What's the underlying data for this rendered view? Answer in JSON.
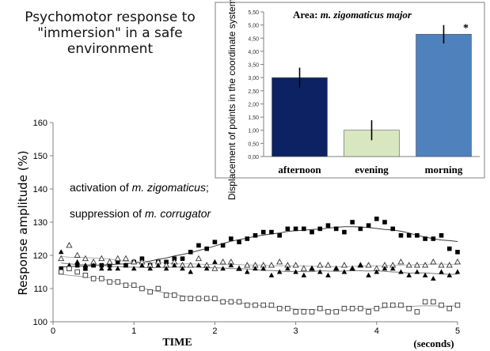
{
  "heading": [
    "Psychomotor response to",
    "\"immersion\" in a safe",
    "environment"
  ],
  "chart_data": [
    {
      "type": "bar",
      "title_prefix": "Area:",
      "title_italic": "m. zigomaticus major",
      "ylabel": "Displacement of points in the coordinate system (mm)",
      "ylim": [
        0,
        5.5
      ],
      "yticks": [
        "0,00",
        "0,50",
        "1,00",
        "1,50",
        "2,00",
        "2,50",
        "3,00",
        "3,50",
        "4,00",
        "4,50",
        "5,00",
        "5,50"
      ],
      "categories": [
        "afternoon",
        "evening",
        "morning"
      ],
      "values": [
        3.0,
        1.0,
        4.65
      ],
      "errors": [
        0.38,
        0.38,
        0.35
      ],
      "colors": [
        "#0d2262",
        "#d8e7c0",
        "#4f81bd"
      ],
      "significance": "*"
    },
    {
      "type": "scatter",
      "ylabel": "Response amplitude (%)",
      "xlabel": "TIME",
      "xunit": "(seconds)",
      "xlim": [
        0,
        5
      ],
      "ylim": [
        100,
        160
      ],
      "xticks": [
        "0",
        "1",
        "2",
        "3",
        "4",
        "5"
      ],
      "yticks": [
        "100",
        "110",
        "120",
        "130",
        "140",
        "150",
        "160"
      ],
      "annotation1_text": "activation of ",
      "annotation1_italic": "m. zigomaticus",
      "annotation1_end": ";",
      "annotation2_text": "suppression of ",
      "annotation2_italic": "m. corrugator",
      "series": [
        {
          "marker": "filled-square",
          "x": [
            0.1,
            0.2,
            0.3,
            0.4,
            0.5,
            0.6,
            0.7,
            0.8,
            0.9,
            1.0,
            1.1,
            1.2,
            1.3,
            1.4,
            1.5,
            1.6,
            1.7,
            1.8,
            1.9,
            2.0,
            2.1,
            2.2,
            2.3,
            2.4,
            2.5,
            2.6,
            2.7,
            2.8,
            2.9,
            3.0,
            3.1,
            3.2,
            3.3,
            3.4,
            3.5,
            3.6,
            3.7,
            3.8,
            3.9,
            4.0,
            4.1,
            4.2,
            4.3,
            4.4,
            4.5,
            4.6,
            4.7,
            4.8,
            4.9,
            5.0
          ],
          "y": [
            116,
            116,
            117,
            116,
            117,
            117,
            117,
            118,
            117,
            118,
            119,
            117,
            118,
            118,
            119,
            119,
            121,
            123,
            122,
            124,
            123,
            125,
            124,
            125,
            126,
            127,
            127,
            126,
            128,
            128,
            128,
            127,
            128,
            129,
            128,
            127,
            130,
            128,
            129,
            131,
            130,
            128,
            126,
            126,
            126,
            125,
            125,
            126,
            122,
            121
          ]
        },
        {
          "marker": "open-triangle",
          "x": [
            0.1,
            0.2,
            0.3,
            0.4,
            0.5,
            0.6,
            0.7,
            0.8,
            0.9,
            1.0,
            1.1,
            1.2,
            1.3,
            1.4,
            1.5,
            1.6,
            1.7,
            1.8,
            1.9,
            2.0,
            2.1,
            2.2,
            2.3,
            2.4,
            2.5,
            2.6,
            2.7,
            2.8,
            2.9,
            3.0,
            3.1,
            3.2,
            3.3,
            3.4,
            3.5,
            3.6,
            3.7,
            3.8,
            3.9,
            4.0,
            4.1,
            4.2,
            4.3,
            4.4,
            4.5,
            4.6,
            4.7,
            4.8,
            4.9,
            5.0
          ],
          "y": [
            119,
            123,
            120,
            119,
            118,
            119,
            118,
            119,
            119,
            118,
            118,
            117,
            118,
            117,
            118,
            117,
            117,
            119,
            117,
            116,
            118,
            118,
            116,
            117,
            117,
            117,
            117,
            118,
            117,
            117,
            116,
            116,
            117,
            117,
            116,
            117,
            116,
            117,
            117,
            116,
            117,
            117,
            118,
            117,
            117,
            117,
            118,
            117,
            117,
            118
          ]
        },
        {
          "marker": "filled-triangle",
          "x": [
            0.1,
            0.2,
            0.3,
            0.4,
            0.5,
            0.6,
            0.7,
            0.8,
            0.9,
            1.0,
            1.1,
            1.2,
            1.3,
            1.4,
            1.5,
            1.6,
            1.7,
            1.8,
            1.9,
            2.0,
            2.1,
            2.2,
            2.3,
            2.4,
            2.5,
            2.6,
            2.7,
            2.8,
            2.9,
            3.0,
            3.1,
            3.2,
            3.3,
            3.4,
            3.5,
            3.6,
            3.7,
            3.8,
            3.9,
            4.0,
            4.1,
            4.2,
            4.3,
            4.4,
            4.5,
            4.6,
            4.7,
            4.8,
            4.9,
            5.0
          ],
          "y": [
            121,
            117,
            118,
            117,
            117,
            116,
            116,
            116,
            117,
            116,
            117,
            116,
            117,
            116,
            117,
            116,
            115,
            117,
            116,
            118,
            116,
            117,
            116,
            115,
            116,
            116,
            114,
            115,
            116,
            115,
            114,
            116,
            115,
            114,
            116,
            115,
            116,
            117,
            114,
            115,
            116,
            116,
            115,
            114,
            115,
            114,
            113,
            115,
            114,
            115
          ]
        },
        {
          "marker": "open-square",
          "x": [
            0.1,
            0.2,
            0.3,
            0.4,
            0.5,
            0.6,
            0.7,
            0.8,
            0.9,
            1.0,
            1.1,
            1.2,
            1.3,
            1.4,
            1.5,
            1.6,
            1.7,
            1.8,
            1.9,
            2.0,
            2.1,
            2.2,
            2.3,
            2.4,
            2.5,
            2.6,
            2.7,
            2.8,
            2.9,
            3.0,
            3.1,
            3.2,
            3.3,
            3.4,
            3.5,
            3.6,
            3.7,
            3.8,
            3.9,
            4.0,
            4.1,
            4.2,
            4.3,
            4.4,
            4.5,
            4.6,
            4.7,
            4.8,
            4.9,
            5.0
          ],
          "y": [
            115,
            116,
            115,
            114,
            113,
            113,
            112,
            112,
            111,
            111,
            110,
            109,
            110,
            108,
            108,
            107,
            107,
            107,
            107,
            107,
            106,
            106,
            106,
            105,
            105,
            105,
            105,
            104,
            104,
            103,
            103,
            103,
            104,
            103,
            103,
            104,
            104,
            104,
            103,
            104,
            105,
            105,
            105,
            104,
            103,
            106,
            106,
            105,
            104,
            105
          ]
        }
      ]
    }
  ]
}
